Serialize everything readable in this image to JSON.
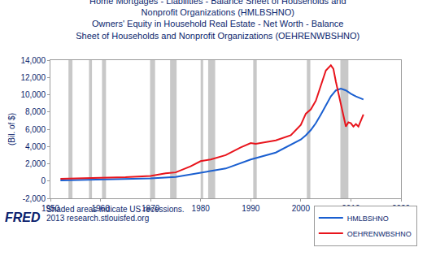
{
  "chart_data": {
    "type": "line",
    "title": [
      "Home Mortgages - Liabilities - Balance Sheet of Households and",
      "Nonprofit Organizations (HMLBSHNO)",
      "Owners' Equity in Household Real Estate - Net Worth - Balance",
      "Sheet of Households and Nonprofit Organizations (OEHRENWBSHNO)"
    ],
    "y_label": "(Bil. of $)",
    "footer": [
      "Shaded areas indicate US recessions.",
      "2013 research.stlouisfed.org"
    ],
    "logo": "FRED",
    "series": [
      {
        "name": "HMLBSHNO",
        "color": "#1a5fd0",
        "x": [
          1952,
          1955,
          1960,
          1965,
          1970,
          1975,
          1980,
          1985,
          1990,
          1995,
          2000,
          2001,
          2002,
          2003,
          2004,
          2005,
          2006,
          2007,
          2008,
          2009,
          2010,
          2011,
          2012,
          2012.5
        ],
        "values": [
          70,
          100,
          150,
          220,
          300,
          470,
          950,
          1450,
          2500,
          3300,
          4800,
          5300,
          5900,
          6700,
          7700,
          8800,
          9800,
          10500,
          10700,
          10500,
          10100,
          9800,
          9600,
          9450
        ]
      },
      {
        "name": "OEHRENWBSHNO",
        "color": "#e8141c",
        "x": [
          1952,
          1955,
          1960,
          1965,
          1970,
          1973,
          1975,
          1978,
          1980,
          1982,
          1985,
          1988,
          1990,
          1991,
          1995,
          1998,
          2000,
          2001,
          2002,
          2003,
          2004,
          2005,
          2006,
          2006.5,
          2007,
          2008,
          2009,
          2009.5,
          2010,
          2010.5,
          2011,
          2011.5,
          2012,
          2012.5
        ],
        "values": [
          250,
          320,
          380,
          450,
          600,
          900,
          1000,
          1700,
          2300,
          2500,
          3000,
          3900,
          4400,
          4300,
          4700,
          5300,
          6500,
          7800,
          8300,
          9300,
          11000,
          12800,
          13400,
          13000,
          11500,
          8800,
          6300,
          6800,
          6700,
          6300,
          6600,
          6300,
          7000,
          7700
        ]
      }
    ],
    "recessions": [
      [
        1953.6,
        1954.4
      ],
      [
        1957.7,
        1958.3
      ],
      [
        1960.3,
        1961.1
      ],
      [
        1969.9,
        1970.9
      ],
      [
        1973.9,
        1975.2
      ],
      [
        1980.0,
        1980.5
      ],
      [
        1981.5,
        1982.9
      ],
      [
        1990.5,
        1991.2
      ],
      [
        2001.2,
        2001.9
      ],
      [
        2007.9,
        2009.5
      ]
    ],
    "xlim": [
      1950,
      2020
    ],
    "xticks": [
      1950,
      1960,
      1970,
      1980,
      1990,
      2000,
      2010,
      2020
    ],
    "ylim": [
      -2000,
      14000
    ],
    "yticks": [
      {
        "value": -2000,
        "label": "-2,000"
      },
      0,
      {
        "value": 2000,
        "label": "2,000"
      },
      {
        "value": 4000,
        "label": "4,000"
      },
      {
        "value": 6000,
        "label": "6,000"
      },
      {
        "value": 8000,
        "label": "8,000"
      },
      {
        "value": 10000,
        "label": "10,000"
      },
      {
        "value": 12000,
        "label": "12,000"
      },
      {
        "value": 14000,
        "label": "14,000"
      }
    ],
    "grid": false,
    "legend": "bottom right"
  }
}
